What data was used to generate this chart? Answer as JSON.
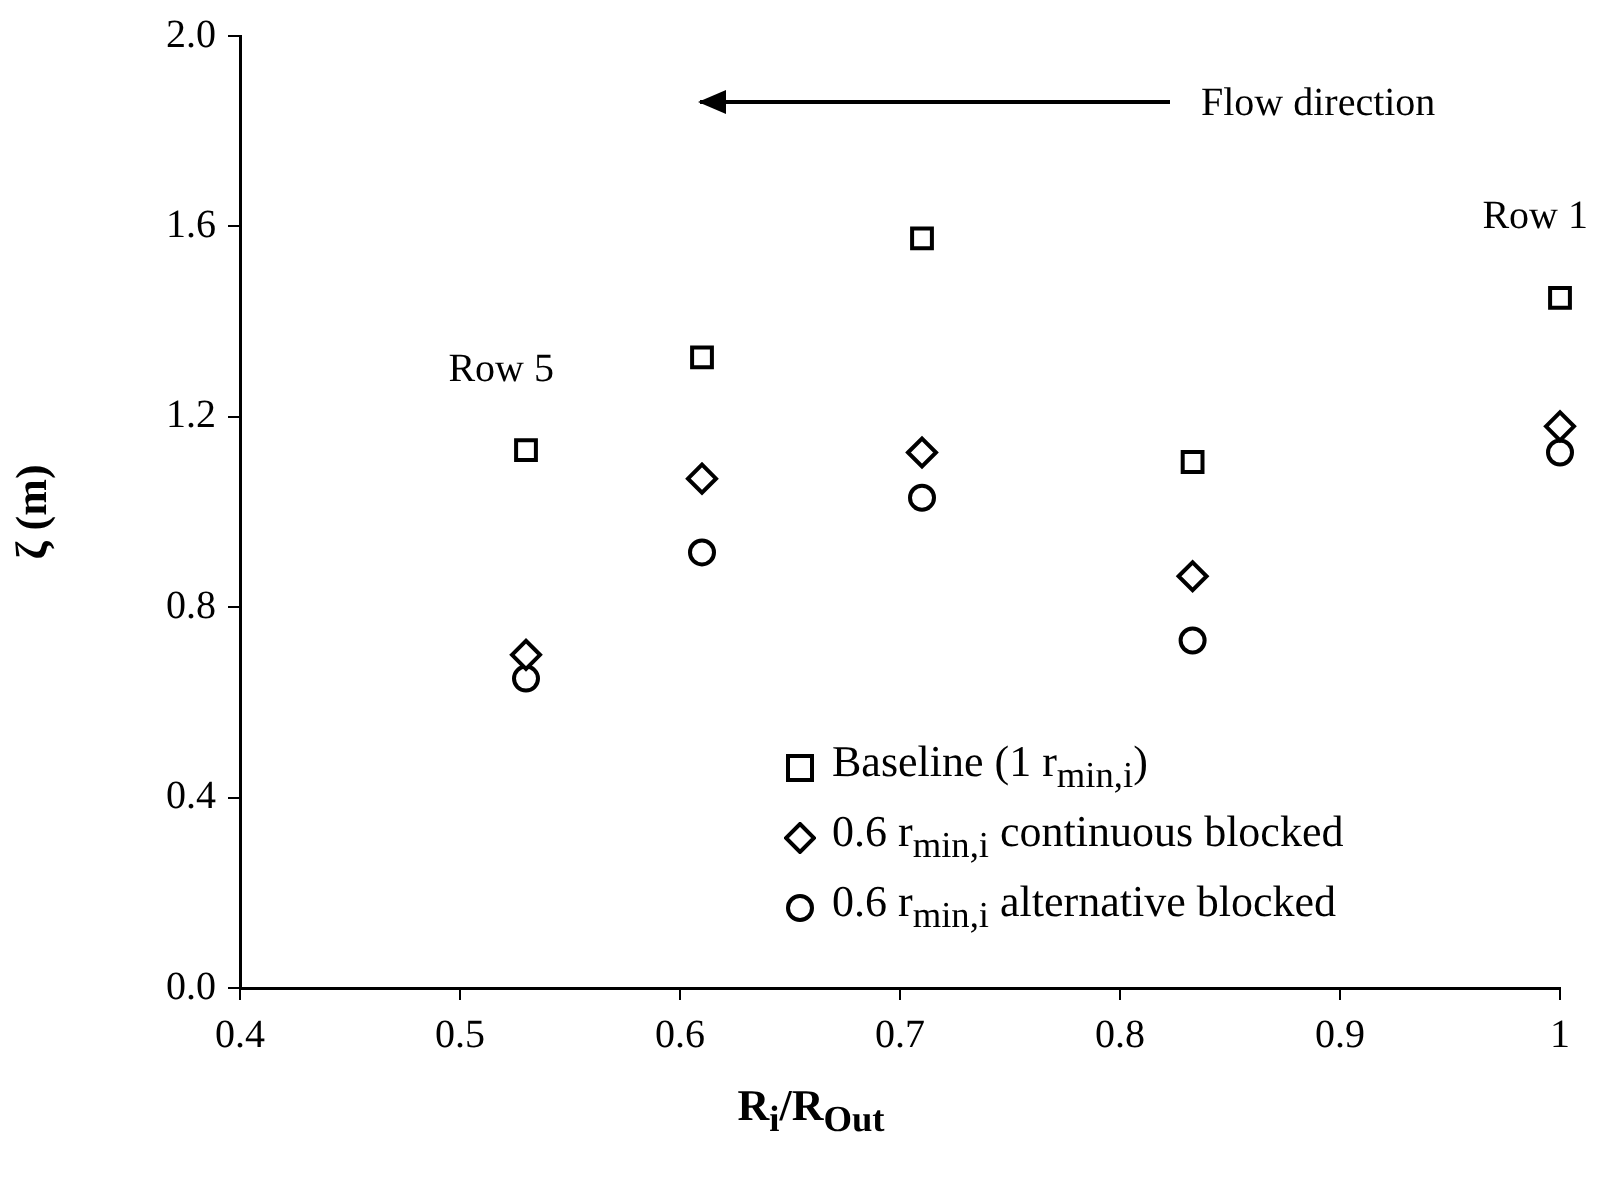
{
  "chart_data": {
    "type": "scatter",
    "xlabel": "R$_{i}$/R$_{Out}$",
    "ylabel": "ζ (m)",
    "x": [
      0.53,
      0.61,
      0.71,
      0.833,
      1.0
    ],
    "series": [
      {
        "name": "Baseline (1 r$_{min,i}$)",
        "color": "#000000",
        "marker": "square",
        "values": [
          1.13,
          1.325,
          1.575,
          1.105,
          1.45
        ]
      },
      {
        "name": "0.6 r$_{min,i}$ continuous blocked",
        "color": "#000000",
        "marker": "diamond",
        "values": [
          0.7,
          1.07,
          1.125,
          0.865,
          1.18
        ]
      },
      {
        "name": "0.6 r$_{min,i}$ alternative blocked",
        "color": "#000000",
        "marker": "circle",
        "values": [
          0.65,
          0.915,
          1.03,
          0.73,
          1.125
        ]
      }
    ],
    "xlim": [
      0.4,
      1.0
    ],
    "xticks": [
      0.4,
      0.5,
      0.6,
      0.7,
      0.8,
      0.9,
      {
        "value": 1.0,
        "label": "1"
      }
    ],
    "ylim": [
      0,
      2.0
    ],
    "yticks": [
      {
        "value": 0,
        "label": "0.0"
      },
      0.4,
      0.8,
      1.2,
      1.6,
      {
        "value": 2.0,
        "label": "2.0"
      }
    ],
    "grid": false,
    "legend": "bottom right",
    "annotations": [
      {
        "text": "Row 5",
        "x": 0.53,
        "y": 1.13
      },
      {
        "text": "Row 1",
        "x": 1.0,
        "y": 1.45
      },
      "Flow direction"
    ]
  }
}
